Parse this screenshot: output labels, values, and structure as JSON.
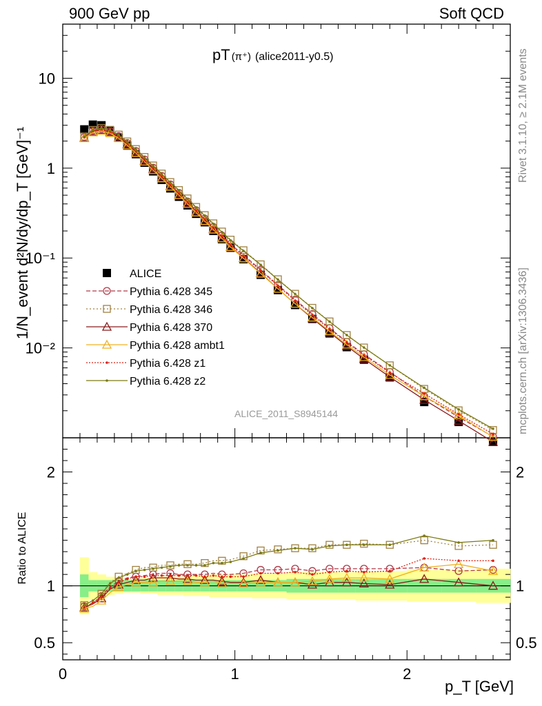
{
  "header": {
    "left": "900 GeV pp",
    "right": "Soft QCD"
  },
  "side_labels": {
    "rivet": "Rivet 3.1.10, ≥ 2.1M events",
    "mcplots": "mcplots.cern.ch [arXiv:1306.3436]"
  },
  "plot_title": {
    "main": "pT",
    "particle": "(π⁺)",
    "sub": "(alice2011-y0.5)"
  },
  "analysis_id": "ALICE_2011_S8945144",
  "ylabel_top": "1/N_event d²N/dy/dp_T [GeV]⁻¹",
  "ylabel_bottom": "Ratio to ALICE",
  "xlabel": "p_T [GeV]",
  "chart_data": [
    {
      "type": "scatter",
      "panel": "main",
      "log_y": true,
      "xlim": [
        0,
        2.6
      ],
      "ylim": [
        0.001,
        40
      ],
      "y_ticks": [
        "10⁻²",
        "10⁻¹",
        "1",
        "10"
      ],
      "x": [
        0.125,
        0.175,
        0.225,
        0.275,
        0.325,
        0.375,
        0.425,
        0.475,
        0.525,
        0.575,
        0.625,
        0.675,
        0.725,
        0.775,
        0.825,
        0.875,
        0.925,
        0.975,
        1.05,
        1.15,
        1.25,
        1.35,
        1.45,
        1.55,
        1.65,
        1.75,
        1.9,
        2.1,
        2.3,
        2.5
      ],
      "series": [
        {
          "name": "ALICE",
          "color": "#000000",
          "marker": "filled-square",
          "values": [
            2.7,
            3.05,
            3.0,
            2.6,
            2.18,
            1.78,
            1.43,
            1.15,
            0.92,
            0.74,
            0.595,
            0.48,
            0.385,
            0.31,
            0.25,
            0.2,
            0.162,
            0.13,
            0.097,
            0.065,
            0.044,
            0.03,
            0.021,
            0.0145,
            0.0102,
            0.0074,
            0.0047,
            0.0025,
            0.0015,
            0.0009
          ]
        },
        {
          "name": "Pythia 6.428 345",
          "color": "#b03a48",
          "marker": "open-circle",
          "dash": "6,3",
          "values": [
            2.22,
            2.6,
            2.72,
            2.58,
            2.27,
            1.9,
            1.55,
            1.25,
            1.01,
            0.82,
            0.66,
            0.53,
            0.425,
            0.34,
            0.275,
            0.222,
            0.178,
            0.143,
            0.108,
            0.074,
            0.05,
            0.0345,
            0.0238,
            0.0166,
            0.0117,
            0.0085,
            0.0054,
            0.0029,
            0.0017,
            0.00103
          ]
        },
        {
          "name": "Pythia 6.428 346",
          "color": "#a08040",
          "marker": "open-square",
          "dash": "2,3",
          "values": [
            2.25,
            2.66,
            2.8,
            2.67,
            2.36,
            1.98,
            1.63,
            1.33,
            1.07,
            0.87,
            0.7,
            0.57,
            0.46,
            0.37,
            0.3,
            0.243,
            0.197,
            0.16,
            0.122,
            0.085,
            0.058,
            0.04,
            0.0279,
            0.0197,
            0.0139,
            0.0101,
            0.0064,
            0.0035,
            0.00202,
            0.00122
          ]
        },
        {
          "name": "Pythia 6.428 370",
          "color": "#8a1a1a",
          "marker": "open-triangle",
          "dash": "",
          "values": [
            2.18,
            2.55,
            2.66,
            2.52,
            2.2,
            1.84,
            1.5,
            1.21,
            0.98,
            0.79,
            0.635,
            0.51,
            0.408,
            0.327,
            0.262,
            0.21,
            0.168,
            0.134,
            0.1,
            0.068,
            0.0455,
            0.0309,
            0.0213,
            0.0149,
            0.0105,
            0.00755,
            0.00475,
            0.00265,
            0.00155,
            0.0009
          ]
        },
        {
          "name": "Pythia 6.428 ambt1",
          "color": "#f0b020",
          "marker": "open-triangle",
          "dash": "",
          "values": [
            2.15,
            2.5,
            2.6,
            2.45,
            2.15,
            1.79,
            1.47,
            1.18,
            0.95,
            0.77,
            0.62,
            0.5,
            0.4,
            0.32,
            0.257,
            0.207,
            0.165,
            0.132,
            0.099,
            0.067,
            0.0455,
            0.031,
            0.0218,
            0.0154,
            0.0109,
            0.0079,
            0.005,
            0.0029,
            0.00178,
            0.00102
          ]
        },
        {
          "name": "Pythia 6.428 z1",
          "color": "#e02010",
          "marker": "dot",
          "dash": "2,2",
          "values": [
            2.2,
            2.58,
            2.7,
            2.56,
            2.25,
            1.89,
            1.54,
            1.24,
            1.0,
            0.81,
            0.65,
            0.525,
            0.42,
            0.337,
            0.27,
            0.218,
            0.175,
            0.14,
            0.105,
            0.072,
            0.049,
            0.0335,
            0.0232,
            0.0162,
            0.0115,
            0.0083,
            0.0053,
            0.0031,
            0.00183,
            0.0011
          ]
        },
        {
          "name": "Pythia 6.428 z2",
          "color": "#7a7a10",
          "marker": "dot",
          "dash": "",
          "values": [
            2.24,
            2.64,
            2.78,
            2.64,
            2.33,
            1.96,
            1.61,
            1.31,
            1.06,
            0.86,
            0.695,
            0.565,
            0.455,
            0.365,
            0.296,
            0.24,
            0.194,
            0.157,
            0.12,
            0.084,
            0.0575,
            0.0398,
            0.0277,
            0.0196,
            0.0139,
            0.0101,
            0.0064,
            0.0036,
            0.00207,
            0.00126
          ]
        }
      ]
    },
    {
      "type": "line",
      "panel": "ratio",
      "xlim": [
        0,
        2.6
      ],
      "ylim": [
        0.35,
        2.3
      ],
      "x_ticks": [
        "0",
        "1",
        "2"
      ],
      "y_ticks": [
        "0.5",
        "1",
        "2"
      ],
      "band_inner_halfwidth": [
        0.1,
        0.05,
        0.05,
        0.05,
        0.05,
        0.05,
        0.05,
        0.05,
        0.05,
        0.05,
        0.05,
        0.05,
        0.05,
        0.05,
        0.05,
        0.05,
        0.05,
        0.05,
        0.05,
        0.05,
        0.05,
        0.06,
        0.06,
        0.06,
        0.06,
        0.06,
        0.06,
        0.06,
        0.06,
        0.06
      ],
      "band_outer_halfwidth": [
        0.25,
        0.12,
        0.1,
        0.08,
        0.07,
        0.06,
        0.06,
        0.07,
        0.07,
        0.08,
        0.08,
        0.08,
        0.09,
        0.09,
        0.09,
        0.1,
        0.1,
        0.1,
        0.1,
        0.11,
        0.11,
        0.12,
        0.12,
        0.12,
        0.12,
        0.13,
        0.13,
        0.14,
        0.14,
        0.15
      ],
      "series_ratio": [
        [
          0.82,
          0.85,
          0.91,
          0.99,
          1.04,
          1.07,
          1.08,
          1.09,
          1.1,
          1.11,
          1.11,
          1.1,
          1.1,
          1.1,
          1.1,
          1.11,
          1.1,
          1.1,
          1.11,
          1.14,
          1.14,
          1.15,
          1.13,
          1.15,
          1.15,
          1.15,
          1.15,
          1.16,
          1.13,
          1.14
        ],
        [
          0.83,
          0.87,
          0.93,
          1.03,
          1.08,
          1.11,
          1.14,
          1.16,
          1.16,
          1.18,
          1.18,
          1.19,
          1.19,
          1.19,
          1.2,
          1.22,
          1.22,
          1.23,
          1.26,
          1.31,
          1.32,
          1.33,
          1.33,
          1.36,
          1.36,
          1.37,
          1.36,
          1.4,
          1.35,
          1.36
        ],
        [
          0.81,
          0.84,
          0.89,
          0.97,
          1.01,
          1.03,
          1.05,
          1.05,
          1.07,
          1.07,
          1.07,
          1.06,
          1.06,
          1.05,
          1.05,
          1.05,
          1.04,
          1.03,
          1.03,
          1.05,
          1.03,
          1.03,
          1.01,
          1.03,
          1.03,
          1.02,
          1.01,
          1.06,
          1.03,
          1.0
        ],
        [
          0.8,
          0.82,
          0.87,
          0.94,
          0.99,
          1.01,
          1.03,
          1.03,
          1.03,
          1.04,
          1.04,
          1.04,
          1.04,
          1.03,
          1.03,
          1.04,
          1.02,
          1.02,
          1.02,
          1.03,
          1.03,
          1.03,
          1.04,
          1.06,
          1.07,
          1.07,
          1.06,
          1.16,
          1.19,
          1.13
        ],
        [
          0.81,
          0.85,
          0.9,
          0.98,
          1.03,
          1.06,
          1.08,
          1.08,
          1.09,
          1.09,
          1.09,
          1.09,
          1.09,
          1.09,
          1.08,
          1.09,
          1.08,
          1.08,
          1.08,
          1.11,
          1.11,
          1.12,
          1.1,
          1.12,
          1.13,
          1.12,
          1.13,
          1.24,
          1.22,
          1.22
        ],
        [
          0.83,
          0.87,
          0.93,
          1.02,
          1.07,
          1.1,
          1.13,
          1.14,
          1.15,
          1.16,
          1.17,
          1.18,
          1.18,
          1.18,
          1.18,
          1.2,
          1.2,
          1.21,
          1.24,
          1.29,
          1.31,
          1.33,
          1.32,
          1.35,
          1.36,
          1.36,
          1.36,
          1.44,
          1.38,
          1.4
        ]
      ]
    }
  ]
}
